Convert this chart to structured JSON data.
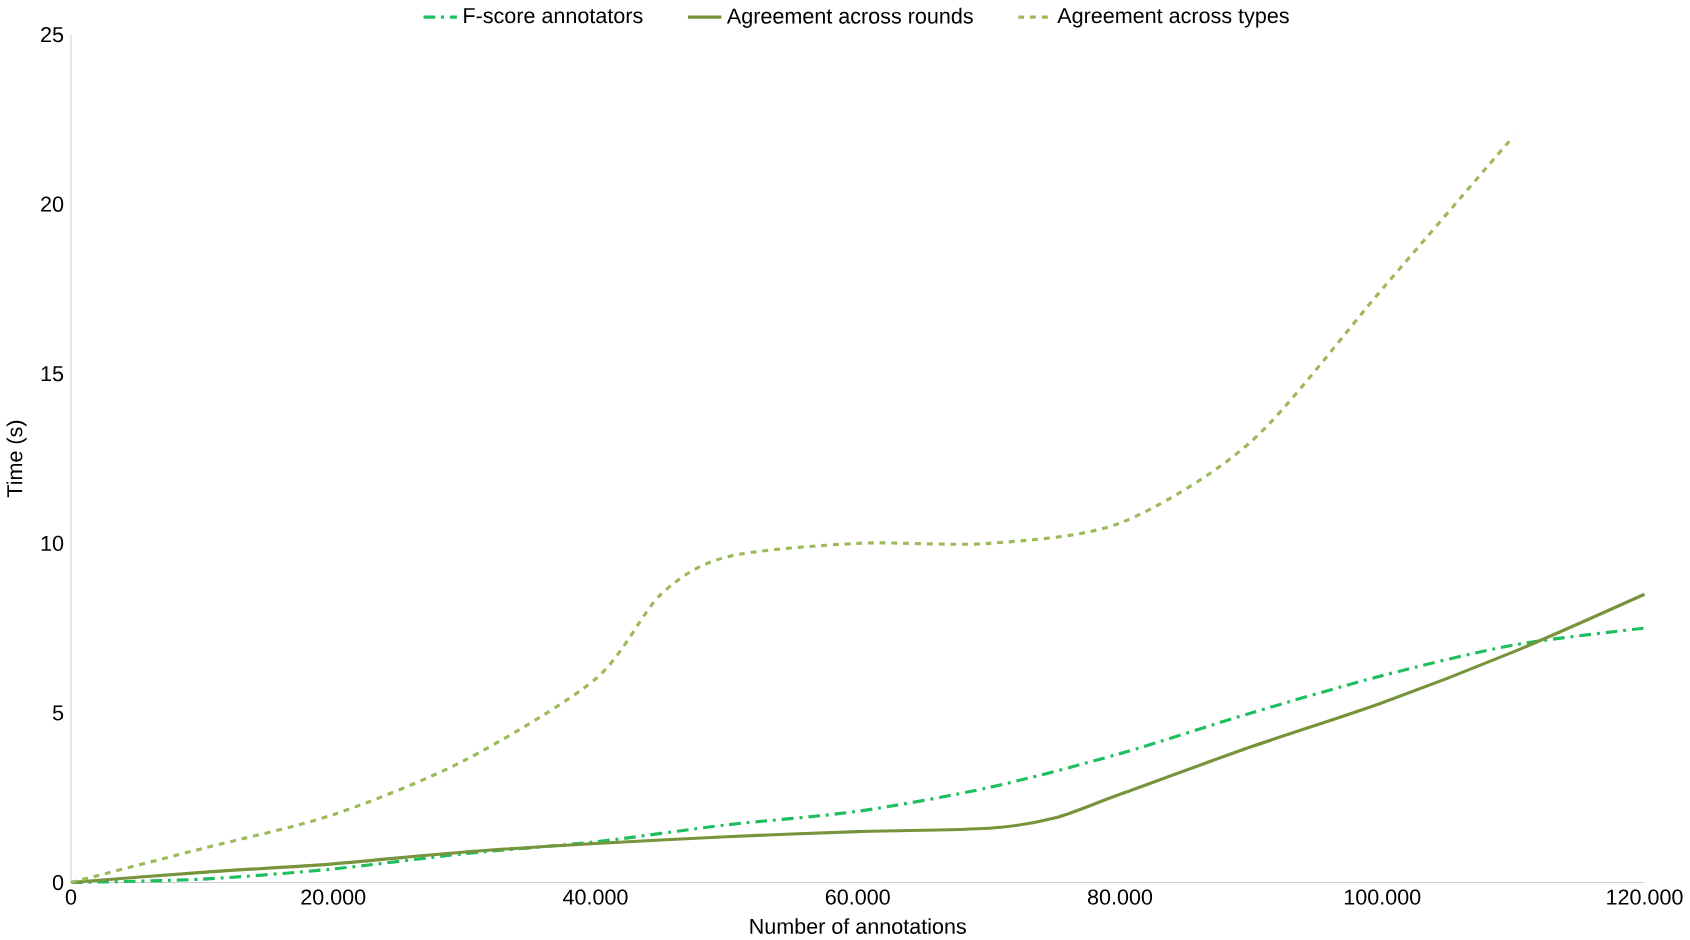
{
  "chart_data": {
    "type": "line",
    "xlabel": "Number of annotations",
    "ylabel": "Time (s)",
    "xlim": [
      0,
      120000
    ],
    "ylim": [
      0,
      25
    ],
    "xticks": [
      0,
      {
        "value": 20000,
        "label": "20.000"
      },
      {
        "value": 40000,
        "label": "40.000"
      },
      {
        "value": 60000,
        "label": "60.000"
      },
      {
        "value": 80000,
        "label": "80.000"
      },
      {
        "value": 100000,
        "label": "100.000"
      },
      {
        "value": 120000,
        "label": "120.000"
      }
    ],
    "yticks": [
      0,
      5,
      10,
      15,
      20,
      25
    ],
    "legend": "top",
    "grid": false,
    "series": [
      {
        "name": "F-score annotators",
        "color": "#1fbf5f",
        "line_style": "dashdot",
        "x": [
          0,
          10000,
          20000,
          30000,
          40000,
          50000,
          60000,
          70000,
          80000,
          90000,
          100000,
          110000,
          120000
        ],
        "values": [
          0,
          0.1,
          0.4,
          0.85,
          1.2,
          1.7,
          2.1,
          2.8,
          3.8,
          5,
          6.1,
          7,
          7.5
        ]
      },
      {
        "name": "Agreement across rounds",
        "color": "#77933c",
        "line_style": "solid",
        "x": [
          0,
          10000,
          20000,
          30000,
          40000,
          50000,
          60000,
          70000,
          75000,
          80000,
          90000,
          100000,
          110000,
          120000
        ],
        "values": [
          0,
          0.3,
          0.55,
          0.9,
          1.15,
          1.35,
          1.5,
          1.6,
          1.9,
          2.6,
          4,
          5.3,
          6.8,
          8.5
        ]
      },
      {
        "name": "Agreement across types",
        "color": "#9bbb59",
        "line_style": "dashed",
        "x": [
          0,
          10000,
          20000,
          30000,
          40000,
          45000,
          50000,
          60000,
          70000,
          80000,
          90000,
          100000,
          110000
        ],
        "values": [
          0,
          1,
          2,
          3.6,
          6,
          8.5,
          9.6,
          10,
          10,
          10.6,
          13,
          17.5,
          22
        ]
      }
    ]
  }
}
